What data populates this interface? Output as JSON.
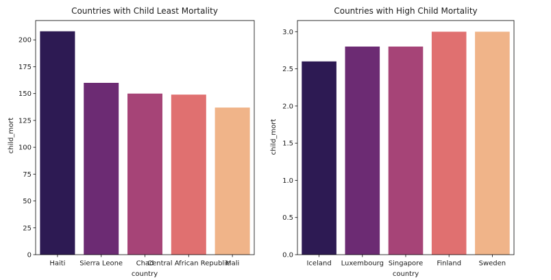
{
  "figure": {
    "palette": [
      "#2d1a53",
      "#6c2b73",
      "#a64477",
      "#e07070",
      "#f0b489"
    ]
  },
  "chart_data": [
    {
      "type": "bar",
      "title": "Countries with Child Least Mortality",
      "xlabel": "country",
      "ylabel": "child_mort",
      "categories": [
        "Haiti",
        "Sierra Leone",
        "Chad",
        "Central African Republic",
        "Mali"
      ],
      "values": [
        208,
        160,
        150,
        149,
        137
      ],
      "ylim": [
        0,
        218
      ],
      "yticks": [
        0,
        25,
        50,
        75,
        100,
        125,
        150,
        175,
        200
      ],
      "ytick_labels": [
        "0",
        "25",
        "50",
        "75",
        "100",
        "125",
        "150",
        "175",
        "200"
      ],
      "grid": false,
      "legend": "none"
    },
    {
      "type": "bar",
      "title": "Countries with High Child Mortality",
      "xlabel": "country",
      "ylabel": "child_mort",
      "categories": [
        "Iceland",
        "Luxembourg",
        "Singapore",
        "Finland",
        "Sweden"
      ],
      "values": [
        2.6,
        2.8,
        2.8,
        3.0,
        3.0
      ],
      "ylim": [
        0,
        3.15
      ],
      "yticks": [
        0,
        0.5,
        1.0,
        1.5,
        2.0,
        2.5,
        3.0
      ],
      "ytick_labels": [
        "0.0",
        "0.5",
        "1.0",
        "1.5",
        "2.0",
        "2.5",
        "3.0"
      ],
      "grid": false,
      "legend": "none"
    }
  ]
}
